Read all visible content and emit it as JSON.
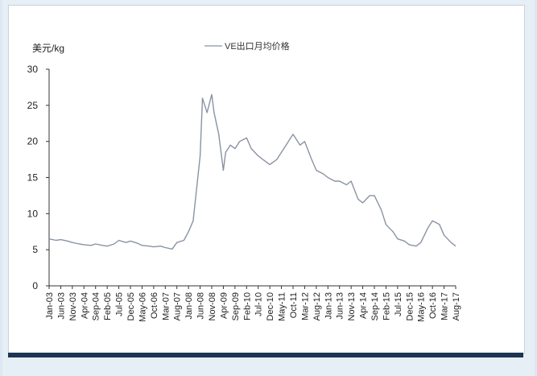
{
  "chart_data": {
    "type": "line",
    "ylabel": "美元/kg",
    "ylim": [
      0,
      30
    ],
    "yticks": [
      0,
      5,
      10,
      15,
      20,
      25,
      30
    ],
    "grid": false,
    "legend_position": "top",
    "x_tick_labels": [
      "Jan-03",
      "Jun-03",
      "Nov-03",
      "Apr-04",
      "Sep-04",
      "Feb-05",
      "Jul-05",
      "Dec-05",
      "May-06",
      "Oct-06",
      "Mar-07",
      "Aug-07",
      "Jan-08",
      "Jun-08",
      "Nov-08",
      "Apr-09",
      "Sep-09",
      "Feb-10",
      "Jul-10",
      "Dec-10",
      "May-11",
      "Oct-11",
      "Mar-12",
      "Aug-12",
      "Jan-13",
      "Jun-13",
      "Nov-13",
      "Apr-14",
      "Sep-14",
      "Feb-15",
      "Jul-15",
      "Dec-15",
      "May-16",
      "Oct-16",
      "Mar-17",
      "Aug-17"
    ],
    "series": [
      {
        "name": "VE出口月均价格",
        "color": "#8a93a3",
        "x": [
          "Jan-03",
          "Apr-03",
          "Jun-03",
          "Sep-03",
          "Nov-03",
          "Feb-04",
          "Apr-04",
          "Jul-04",
          "Sep-04",
          "Dec-04",
          "Feb-05",
          "May-05",
          "Jul-05",
          "Oct-05",
          "Dec-05",
          "Mar-06",
          "May-06",
          "Aug-06",
          "Oct-06",
          "Jan-07",
          "Mar-07",
          "Jun-07",
          "Aug-07",
          "Nov-07",
          "Jan-08",
          "Mar-08",
          "Jun-08",
          "Jul-08",
          "Sep-08",
          "Nov-08",
          "Dec-08",
          "Feb-09",
          "Apr-09",
          "May-09",
          "Jul-09",
          "Sep-09",
          "Nov-09",
          "Feb-10",
          "Apr-10",
          "Jul-10",
          "Sep-10",
          "Dec-10",
          "Mar-11",
          "May-11",
          "Aug-11",
          "Oct-11",
          "Jan-12",
          "Mar-12",
          "Jun-12",
          "Aug-12",
          "Nov-12",
          "Jan-13",
          "Apr-13",
          "Jun-13",
          "Sep-13",
          "Nov-13",
          "Feb-14",
          "Apr-14",
          "Jul-14",
          "Sep-14",
          "Dec-14",
          "Feb-15",
          "May-15",
          "Jul-15",
          "Oct-15",
          "Dec-15",
          "Mar-16",
          "May-16",
          "Aug-16",
          "Oct-16",
          "Jan-17",
          "Mar-17",
          "Jun-17",
          "Aug-17"
        ],
        "values": [
          6.5,
          6.3,
          6.4,
          6.2,
          6.0,
          5.8,
          5.7,
          5.6,
          5.8,
          5.6,
          5.5,
          5.8,
          6.3,
          6.0,
          6.2,
          5.9,
          5.6,
          5.5,
          5.4,
          5.5,
          5.3,
          5.1,
          6.0,
          6.3,
          7.5,
          9.0,
          18.0,
          26.0,
          24.0,
          26.5,
          24.0,
          21.0,
          16.0,
          18.5,
          19.5,
          19.0,
          20.0,
          20.5,
          19.0,
          18.0,
          17.5,
          16.8,
          17.5,
          18.5,
          20.0,
          21.0,
          19.5,
          20.0,
          17.5,
          16.0,
          15.5,
          15.0,
          14.5,
          14.5,
          14.0,
          14.5,
          12.0,
          11.5,
          12.5,
          12.5,
          10.5,
          8.5,
          7.5,
          6.5,
          6.2,
          5.7,
          5.5,
          6.0,
          8.0,
          9.0,
          8.5,
          7.0,
          6.0,
          5.5
        ]
      }
    ]
  }
}
